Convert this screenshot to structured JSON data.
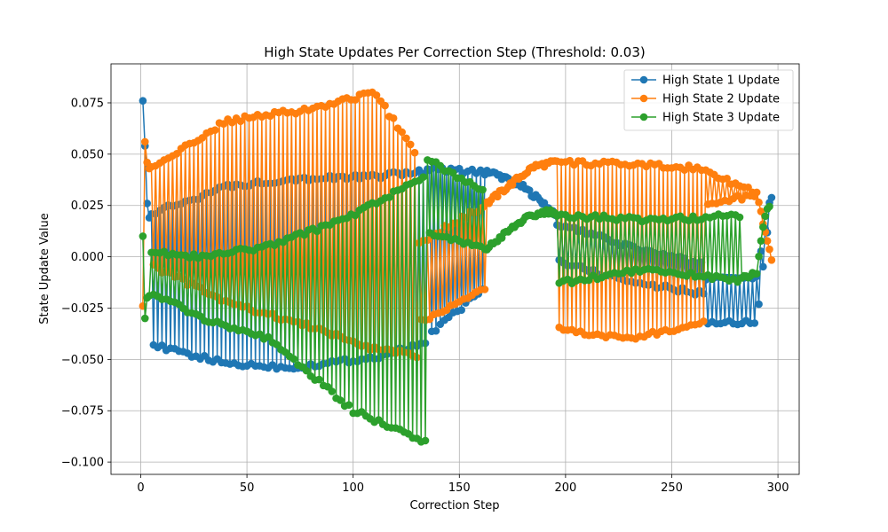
{
  "chart_data": {
    "type": "line",
    "title": "High State Updates Per Correction Step (Threshold: 0.03)",
    "xlabel": "Correction Step",
    "ylabel": "State Update Value",
    "xlim": [
      -14,
      310
    ],
    "ylim": [
      -0.106,
      0.094
    ],
    "xticks": [
      0,
      50,
      100,
      150,
      200,
      250,
      300
    ],
    "yticks": [
      -0.1,
      -0.075,
      -0.05,
      -0.025,
      0.0,
      0.025,
      0.05,
      0.075
    ],
    "grid": true,
    "legend_position": "top-right",
    "marker": "circle",
    "series": [
      {
        "name": "High State 1 Update",
        "color": "#1f77b4",
        "segments": [
          {
            "x": [
              1,
              2,
              3,
              4
            ],
            "y": [
              0.076,
              0.054,
              0.026,
              0.019
            ]
          },
          {
            "x_start": 5,
            "x_end": 135,
            "mode": "alternate",
            "a": [
              [
                5,
                0.021
              ],
              [
                40,
                0.034
              ],
              [
                70,
                0.038
              ],
              [
                110,
                0.039
              ],
              [
                135,
                0.042
              ]
            ],
            "b": [
              [
                5,
                -0.043
              ],
              [
                40,
                -0.052
              ],
              [
                70,
                -0.054
              ],
              [
                110,
                -0.049
              ],
              [
                135,
                -0.042
              ]
            ]
          },
          {
            "x_start": 136,
            "x_end": 162,
            "mode": "alternate",
            "a": [
              [
                136,
                0.043
              ],
              [
                162,
                0.041
              ]
            ],
            "b": [
              [
                136,
                -0.038
              ],
              [
                162,
                -0.015
              ]
            ]
          },
          {
            "x_start": 163,
            "x_end": 195,
            "mode": "single",
            "a": [
              [
                163,
                0.042
              ],
              [
                170,
                0.039
              ],
              [
                180,
                0.034
              ],
              [
                190,
                0.026
              ],
              [
                195,
                0.02
              ]
            ]
          },
          {
            "x_start": 196,
            "x_end": 265,
            "mode": "alternate",
            "a": [
              [
                196,
                0.016
              ],
              [
                230,
                0.005
              ],
              [
                265,
                -0.004
              ]
            ],
            "b": [
              [
                196,
                -0.002
              ],
              [
                230,
                -0.012
              ],
              [
                265,
                -0.018
              ]
            ]
          },
          {
            "x_start": 266,
            "x_end": 297,
            "mode": "alternate",
            "a": [
              [
                266,
                -0.01
              ],
              [
                290,
                -0.01
              ],
              [
                297,
                0.031
              ]
            ],
            "b": [
              [
                266,
                -0.032
              ],
              [
                290,
                -0.032
              ],
              [
                297,
                0.03
              ]
            ]
          }
        ]
      },
      {
        "name": "High State 2 Update",
        "color": "#ff7f0e",
        "segments": [
          {
            "x": [
              1,
              2,
              3,
              4
            ],
            "y": [
              -0.024,
              0.056,
              0.046,
              0.043
            ]
          },
          {
            "x_start": 5,
            "x_end": 130,
            "mode": "alternate",
            "a": [
              [
                5,
                0.043
              ],
              [
                40,
                0.066
              ],
              [
                80,
                0.072
              ],
              [
                110,
                0.08
              ],
              [
                130,
                0.05
              ]
            ],
            "b": [
              [
                5,
                -0.004
              ],
              [
                40,
                -0.022
              ],
              [
                80,
                -0.034
              ],
              [
                110,
                -0.045
              ],
              [
                130,
                -0.048
              ]
            ]
          },
          {
            "x_start": 131,
            "x_end": 162,
            "mode": "alternate",
            "a": [
              [
                131,
                0.007
              ],
              [
                162,
                0.025
              ]
            ],
            "b": [
              [
                131,
                -0.032
              ],
              [
                162,
                -0.015
              ]
            ]
          },
          {
            "x_start": 163,
            "x_end": 195,
            "mode": "single",
            "a": [
              [
                163,
                0.026
              ],
              [
                175,
                0.036
              ],
              [
                185,
                0.044
              ],
              [
                195,
                0.046
              ]
            ]
          },
          {
            "x_start": 196,
            "x_end": 265,
            "mode": "alternate",
            "a": [
              [
                196,
                0.046
              ],
              [
                230,
                0.045
              ],
              [
                265,
                0.043
              ]
            ],
            "b": [
              [
                196,
                -0.035
              ],
              [
                230,
                -0.04
              ],
              [
                265,
                -0.032
              ]
            ]
          },
          {
            "x_start": 266,
            "x_end": 297,
            "mode": "alternate",
            "a": [
              [
                266,
                0.042
              ],
              [
                290,
                0.031
              ],
              [
                297,
                -0.001
              ]
            ],
            "b": [
              [
                266,
                0.026
              ],
              [
                290,
                0.03
              ],
              [
                297,
                -0.001
              ]
            ]
          }
        ]
      },
      {
        "name": "High State 3 Update",
        "color": "#2ca02c",
        "segments": [
          {
            "x": [
              1,
              2,
              3,
              4
            ],
            "y": [
              0.01,
              -0.03,
              -0.02,
              -0.019
            ]
          },
          {
            "x_start": 5,
            "x_end": 134,
            "mode": "alternate",
            "a": [
              [
                5,
                0.002
              ],
              [
                30,
                0.0
              ],
              [
                60,
                0.005
              ],
              [
                100,
                0.02
              ],
              [
                134,
                0.04
              ]
            ],
            "b": [
              [
                5,
                -0.018
              ],
              [
                30,
                -0.03
              ],
              [
                60,
                -0.04
              ],
              [
                100,
                -0.075
              ],
              [
                134,
                -0.09
              ]
            ]
          },
          {
            "x_start": 135,
            "x_end": 162,
            "mode": "alternate",
            "a": [
              [
                135,
                0.048
              ],
              [
                162,
                0.031
              ]
            ],
            "b": [
              [
                135,
                0.012
              ],
              [
                162,
                0.004
              ]
            ]
          },
          {
            "x_start": 163,
            "x_end": 195,
            "mode": "single",
            "a": [
              [
                163,
                0.004
              ],
              [
                170,
                0.01
              ],
              [
                180,
                0.018
              ],
              [
                190,
                0.022
              ],
              [
                195,
                0.022
              ]
            ]
          },
          {
            "x_start": 196,
            "x_end": 282,
            "mode": "alternate",
            "a": [
              [
                196,
                0.02
              ],
              [
                240,
                0.018
              ],
              [
                282,
                0.02
              ]
            ],
            "b": [
              [
                196,
                -0.013
              ],
              [
                240,
                -0.006
              ],
              [
                282,
                -0.012
              ]
            ]
          },
          {
            "x_start": 283,
            "x_end": 296,
            "mode": "single",
            "a": [
              [
                283,
                -0.01
              ],
              [
                290,
                -0.008
              ],
              [
                294,
                0.021
              ],
              [
                296,
                0.024
              ]
            ]
          }
        ]
      }
    ]
  }
}
